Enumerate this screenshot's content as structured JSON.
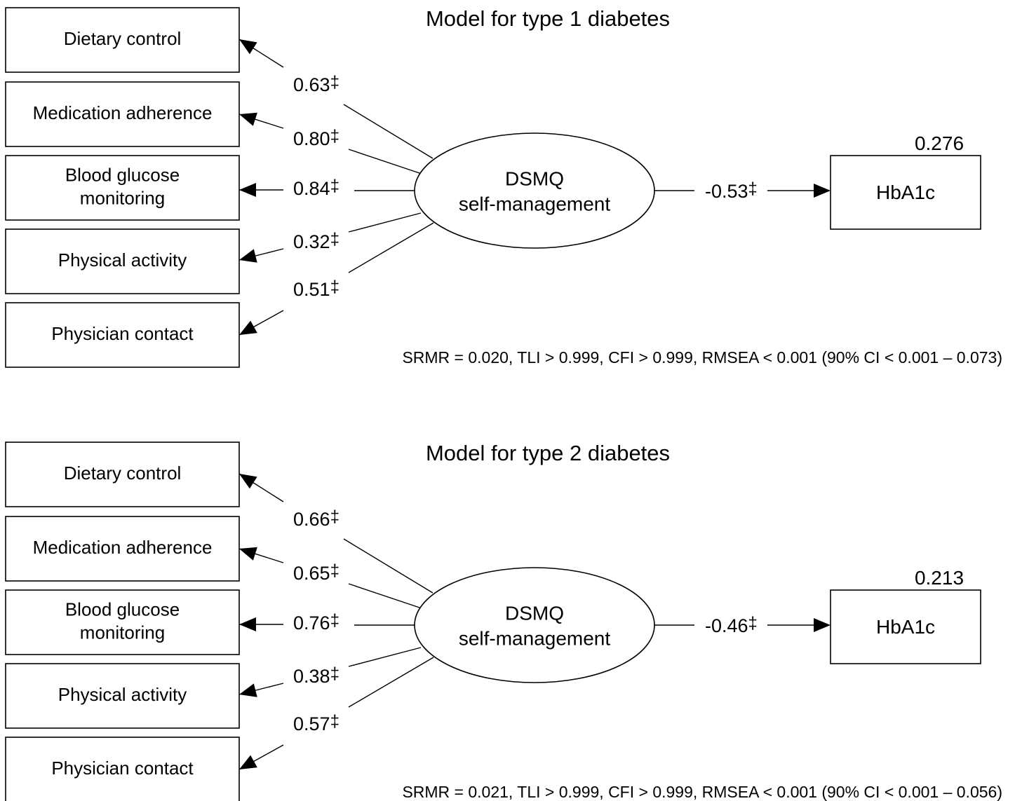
{
  "models": [
    {
      "title": "Model for type 1 diabetes",
      "indicators": [
        {
          "lines": [
            "Dietary control"
          ],
          "loading": "0.63",
          "mark": "‡"
        },
        {
          "lines": [
            "Medication adherence"
          ],
          "loading": "0.80",
          "mark": "‡"
        },
        {
          "lines": [
            "Blood glucose",
            "monitoring"
          ],
          "loading": "0.84",
          "mark": "‡"
        },
        {
          "lines": [
            "Physical activity"
          ],
          "loading": "0.32",
          "mark": "‡"
        },
        {
          "lines": [
            "Physician contact"
          ],
          "loading": "0.51",
          "mark": "‡"
        }
      ],
      "latent": [
        "DSMQ",
        "self-management"
      ],
      "path": {
        "coefficient": "-0.53",
        "mark": "‡"
      },
      "outcome": {
        "label": "HbA1c",
        "r2": "0.276"
      },
      "fit": "SRMR = 0.020, TLI > 0.999, CFI > 0.999, RMSEA < 0.001 (90% CI < 0.001 – 0.073)"
    },
    {
      "title": "Model for type 2 diabetes",
      "indicators": [
        {
          "lines": [
            "Dietary control"
          ],
          "loading": "0.66",
          "mark": "‡"
        },
        {
          "lines": [
            "Medication adherence"
          ],
          "loading": "0.65",
          "mark": "‡"
        },
        {
          "lines": [
            "Blood glucose",
            "monitoring"
          ],
          "loading": "0.76",
          "mark": "‡"
        },
        {
          "lines": [
            "Physical activity"
          ],
          "loading": "0.38",
          "mark": "‡"
        },
        {
          "lines": [
            "Physician contact"
          ],
          "loading": "0.57",
          "mark": "‡"
        }
      ],
      "latent": [
        "DSMQ",
        "self-management"
      ],
      "path": {
        "coefficient": "-0.46",
        "mark": "‡"
      },
      "outcome": {
        "label": "HbA1c",
        "r2": "0.213"
      },
      "fit": "SRMR = 0.021, TLI > 0.999, CFI > 0.999, RMSEA < 0.001 (90% CI < 0.001 – 0.056)"
    }
  ]
}
